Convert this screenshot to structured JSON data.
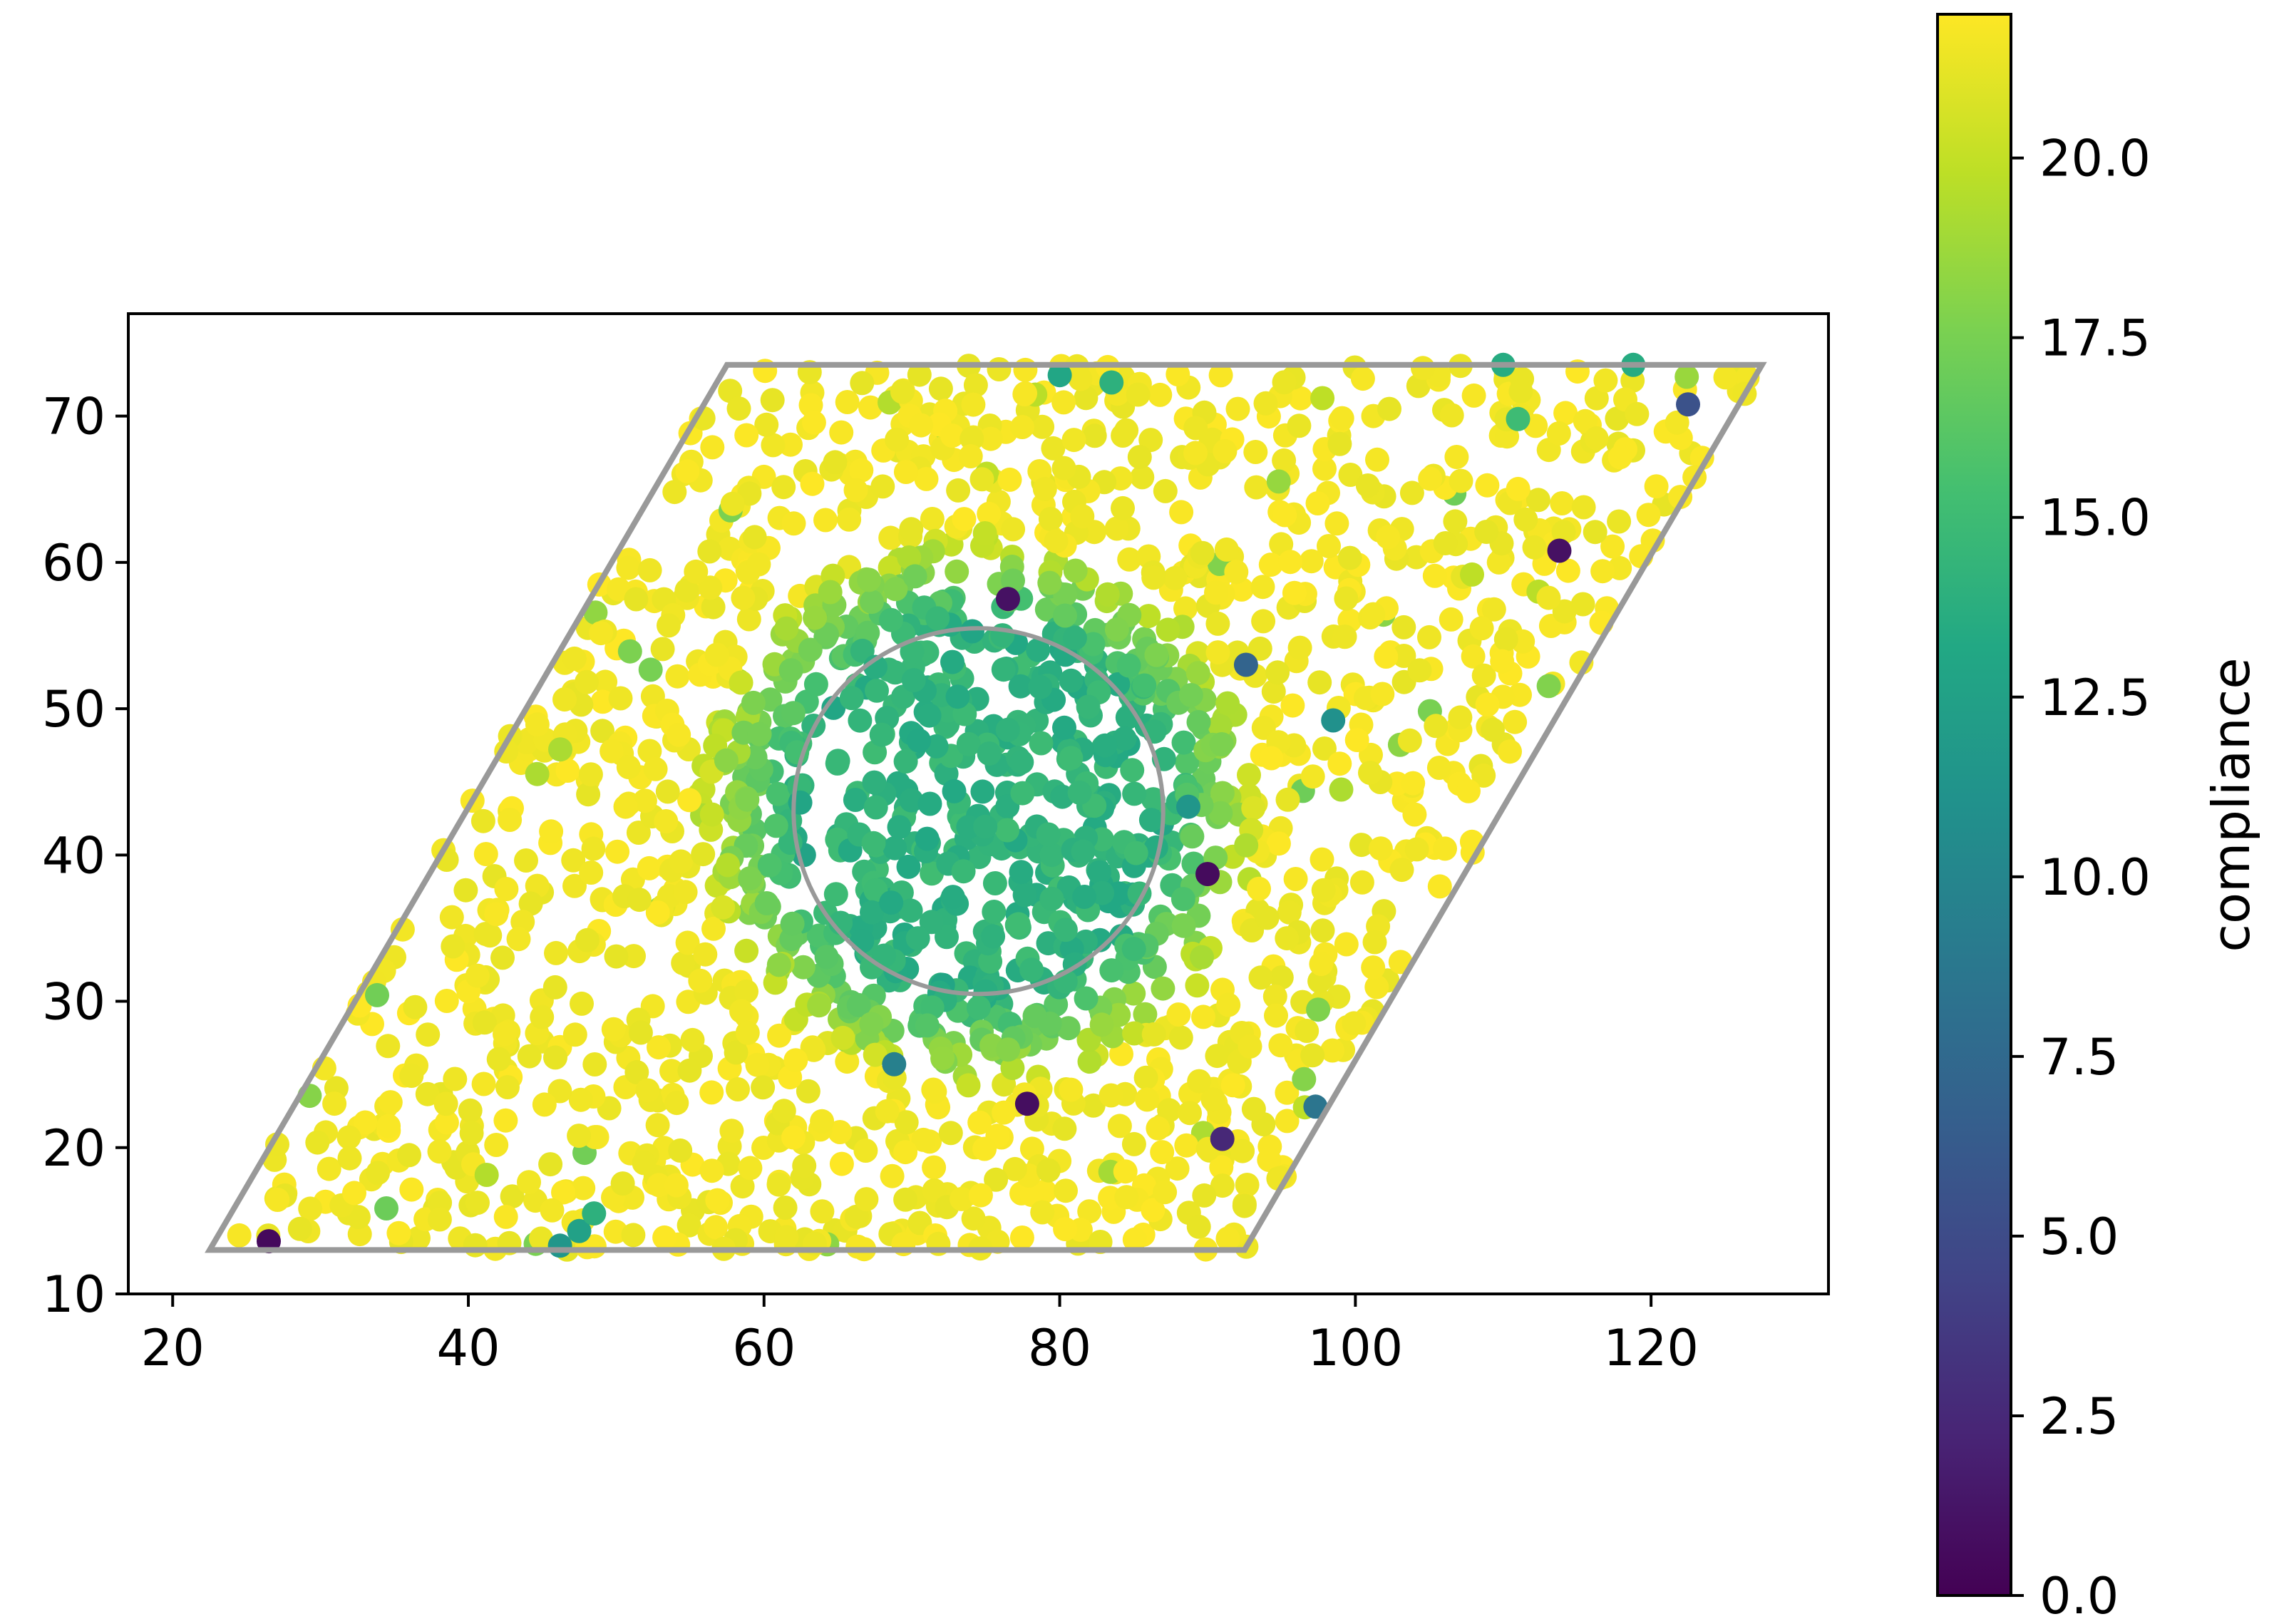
{
  "chart_data": {
    "type": "scatter",
    "title": "",
    "xlabel": "",
    "ylabel": "",
    "xlim": [
      17,
      132
    ],
    "ylim": [
      10,
      77
    ],
    "x_ticks": [
      20,
      40,
      60,
      80,
      100,
      120
    ],
    "y_ticks": [
      10,
      20,
      30,
      40,
      50,
      60,
      70
    ],
    "grid": false,
    "colormap": "viridis",
    "colorbar": {
      "label": "compliance",
      "range": [
        0.0,
        22.0
      ],
      "ticks": [
        "0.0",
        "2.5",
        "5.0",
        "7.5",
        "10.0",
        "12.5",
        "15.0",
        "17.5",
        "20.0"
      ],
      "tick_values": [
        0.0,
        2.5,
        5.0,
        7.5,
        10.0,
        12.5,
        15.0,
        17.5,
        20.0
      ]
    },
    "boundary": {
      "shape": "parallelogram",
      "vertices": [
        [
          22.5,
          13.0
        ],
        [
          92.5,
          13.0
        ],
        [
          127.5,
          73.5
        ],
        [
          57.5,
          73.5
        ]
      ],
      "color": "#999999"
    },
    "circle": {
      "center": [
        74.5,
        43
      ],
      "radius": 12.5,
      "color": "#999999"
    },
    "cluster_center": [
      74.5,
      43
    ],
    "point_count_approx": 1650,
    "outliers": [
      {
        "x": 26.5,
        "y": 13.6,
        "value": 0.5
      },
      {
        "x": 76.5,
        "y": 57.5,
        "value": 1.0
      },
      {
        "x": 77.8,
        "y": 23.0,
        "value": 0.8
      },
      {
        "x": 90.0,
        "y": 38.7,
        "value": 0.6
      },
      {
        "x": 91.0,
        "y": 20.6,
        "value": 2.5
      },
      {
        "x": 113.8,
        "y": 60.8,
        "value": 1.0
      },
      {
        "x": 122.5,
        "y": 70.8,
        "value": 5.5
      },
      {
        "x": 92.6,
        "y": 53.0,
        "value": 7.0
      },
      {
        "x": 97.3,
        "y": 22.8,
        "value": 8.5
      },
      {
        "x": 68.8,
        "y": 25.7,
        "value": 9.5
      },
      {
        "x": 98.5,
        "y": 49.2,
        "value": 11.0
      },
      {
        "x": 88.7,
        "y": 43.3,
        "value": 11.5
      },
      {
        "x": 46.2,
        "y": 13.3,
        "value": 11.5
      },
      {
        "x": 80.0,
        "y": 72.8,
        "value": 13.0
      },
      {
        "x": 110.0,
        "y": 73.5,
        "value": 13.5
      },
      {
        "x": 118.8,
        "y": 73.5,
        "value": 13.5
      },
      {
        "x": 47.5,
        "y": 14.3,
        "value": 12.5
      },
      {
        "x": 48.5,
        "y": 15.5,
        "value": 14.0
      },
      {
        "x": 111.0,
        "y": 69.8,
        "value": 15.0
      },
      {
        "x": 83.5,
        "y": 72.3,
        "value": 14.0
      }
    ]
  }
}
